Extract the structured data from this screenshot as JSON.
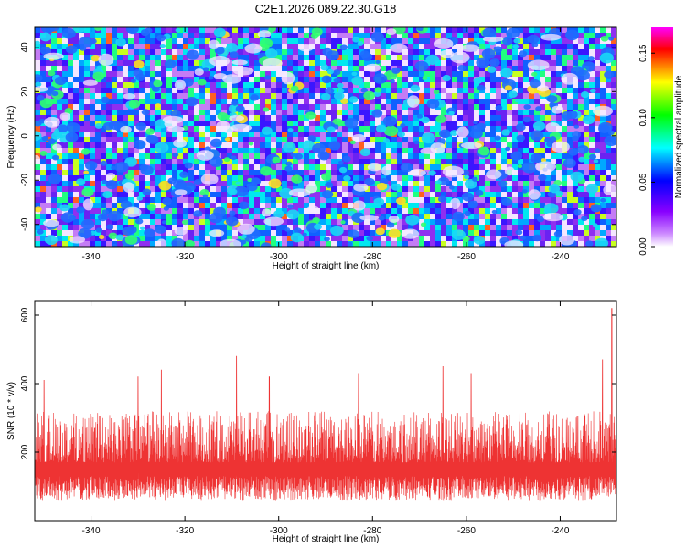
{
  "figure": {
    "title": "C2E1.2026.089.22.30.G18"
  },
  "chart_data": [
    {
      "type": "heatmap",
      "title": "C2E1.2026.089.22.30.G18",
      "xlabel": "Height of straight line (km)",
      "ylabel": "Frequency (Hz)",
      "xlim": [
        -352,
        -228
      ],
      "ylim": [
        -50,
        49
      ],
      "xticks": [
        -340,
        -320,
        -300,
        -280,
        -260,
        -240
      ],
      "yticks": [
        -40,
        -20,
        0,
        20,
        40
      ],
      "colorbar": {
        "label": "Normalized spectral amplitude",
        "range": [
          0,
          0.17
        ],
        "ticks": [
          "0.00",
          "0.05",
          "0.10",
          "0.15"
        ],
        "tick_values": [
          0.0,
          0.05,
          0.1,
          0.15
        ],
        "colormap": [
          "#ffffff",
          "#8800ff",
          "#0000ff",
          "#00ffff",
          "#00ff00",
          "#ffff00",
          "#ff0000",
          "#ff00ff"
        ]
      },
      "values_note": "noise-like amplitude field, mostly 0.01-0.06, isolated peaks up to ~0.15"
    },
    {
      "type": "line",
      "xlabel": "Height of straight line (km)",
      "ylabel": "SNR (10 * v/v)",
      "xlim": [
        -352,
        -228
      ],
      "ylim": [
        0,
        640
      ],
      "xticks": [
        -340,
        -320,
        -300,
        -280,
        -260,
        -240
      ],
      "yticks": [
        200,
        400,
        600
      ],
      "color": "#ee3333",
      "series_stats": {
        "baseline_low": 60,
        "typical_high": 300,
        "peaks": [
          {
            "x": -350,
            "y": 410
          },
          {
            "x": -330,
            "y": 420
          },
          {
            "x": -325,
            "y": 440
          },
          {
            "x": -309,
            "y": 480
          },
          {
            "x": -302,
            "y": 420
          },
          {
            "x": -283,
            "y": 430
          },
          {
            "x": -265,
            "y": 450
          },
          {
            "x": -259,
            "y": 430
          },
          {
            "x": -231,
            "y": 470
          },
          {
            "x": -229,
            "y": 620
          }
        ]
      }
    }
  ]
}
